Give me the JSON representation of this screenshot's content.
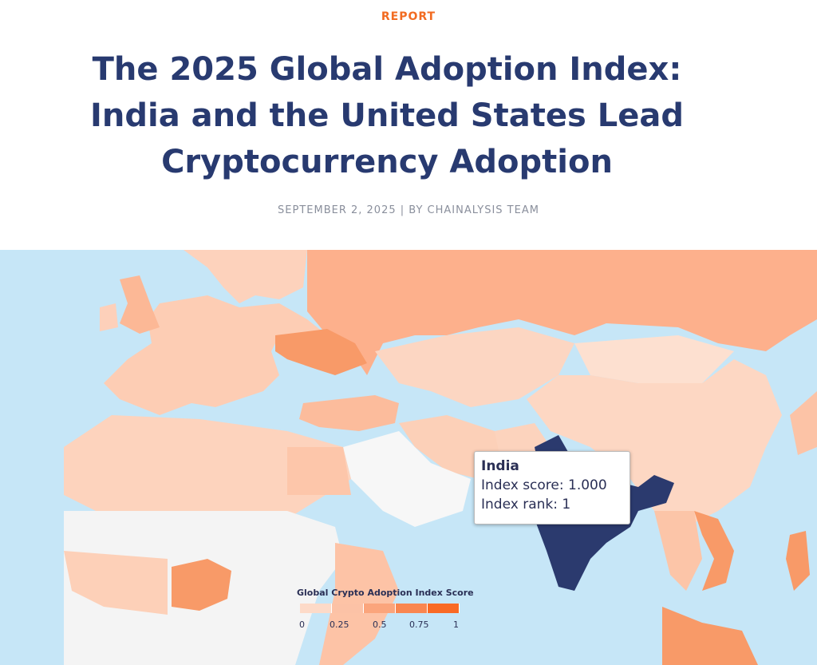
{
  "header": {
    "kicker": "REPORT",
    "title": "The 2025 Global Adoption Index: India and the United States Lead Cryptocurrency Adoption",
    "byline": "SEPTEMBER 2, 2025 | BY CHAINALYSIS TEAM"
  },
  "map": {
    "colors": {
      "sea": "#c6e6f7",
      "no_data": "#f4f4f4",
      "low": "#fdd8c4",
      "mid": "#fcbc9c",
      "high": "#f8935f",
      "selected": "#2b3a6e",
      "accent": "#f26b21"
    },
    "tooltip": {
      "country": "India",
      "score_label": "Index score: 1.000",
      "rank_label": "Index rank: 1"
    },
    "legend": {
      "title": "Global Crypto Adoption Index Score",
      "ticks": [
        "0",
        "0.25",
        "0.5",
        "0.75",
        "1"
      ],
      "colors": [
        "#fddac8",
        "#fcc2a6",
        "#fba57c",
        "#f98650",
        "#f96a25"
      ]
    }
  }
}
